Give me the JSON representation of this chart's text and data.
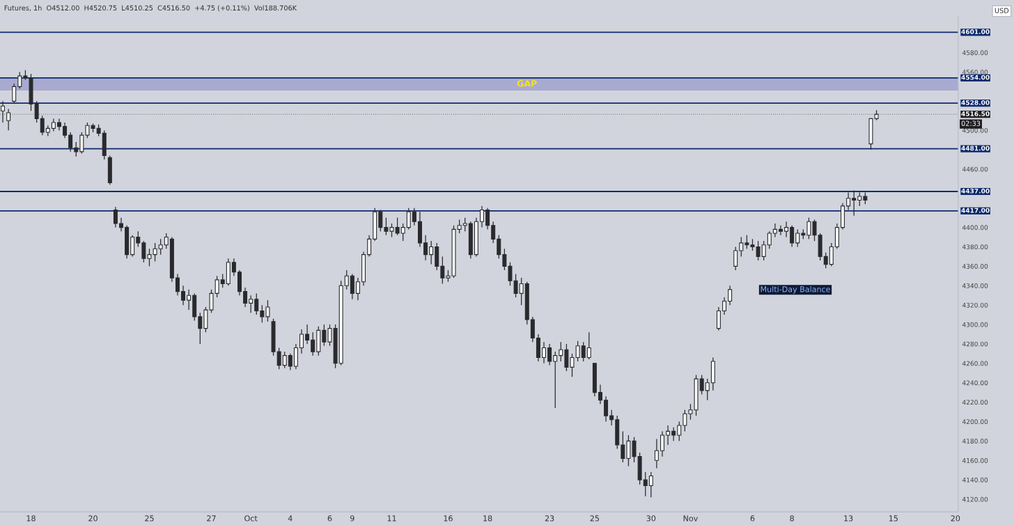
{
  "chart_data": {
    "type": "candlestick",
    "title": "Futures, 1h  O4512.00  H4520.75  L4510.25  C4516.50  +4.75 (+0.11%)  Vol188.706K",
    "categories": [
      null,
      null,
      null,
      null,
      null,
      "18",
      null,
      null,
      null,
      null,
      null,
      null,
      null,
      null,
      null,
      null,
      "20",
      null,
      null,
      null,
      null,
      null,
      null,
      null,
      null,
      null,
      "25",
      null,
      null,
      null,
      null,
      null,
      null,
      null,
      null,
      null,
      null,
      "27",
      null,
      null,
      null,
      null,
      null,
      null,
      "Oct",
      null,
      null,
      null,
      null,
      null,
      null,
      "4",
      null,
      null,
      null,
      null,
      null,
      null,
      "6",
      null,
      null,
      null,
      "9",
      null,
      null,
      null,
      null,
      null,
      null,
      "11",
      null,
      null,
      null,
      null,
      null,
      null,
      null,
      null,
      null,
      "16",
      null,
      null,
      null,
      null,
      null,
      null,
      "18",
      null,
      null,
      null,
      null,
      null,
      null,
      null,
      null,
      null,
      null,
      "23",
      null,
      null,
      null,
      null,
      null,
      null,
      null,
      "25",
      null,
      null,
      null,
      null,
      null,
      null,
      null,
      null,
      null,
      "30",
      null,
      null,
      null,
      null,
      null,
      null,
      "Nov",
      null,
      null,
      null,
      null,
      null,
      null,
      null,
      null,
      null,
      null,
      "6",
      null,
      null,
      null,
      null,
      null,
      null,
      "8",
      null,
      null,
      null,
      null,
      null,
      null,
      null,
      null,
      null,
      "13",
      null,
      null,
      null,
      null,
      null,
      null,
      null,
      "15",
      null,
      null,
      null,
      null,
      null,
      null,
      null,
      null,
      null,
      null,
      "20"
    ],
    "ohlc": [
      [
        4520,
        4530,
        4508,
        4525
      ],
      [
        4510,
        4522,
        4500,
        4518
      ],
      [
        4530,
        4548,
        4528,
        4545
      ],
      [
        4545,
        4560,
        4543,
        4556
      ],
      [
        4556,
        4562,
        4552,
        4554
      ],
      [
        4554,
        4558,
        4520,
        4527
      ],
      [
        4527,
        4530,
        4508,
        4512
      ],
      [
        4512,
        4515,
        4495,
        4498
      ],
      [
        4498,
        4505,
        4494,
        4502
      ],
      [
        4502,
        4512,
        4499,
        4508
      ],
      [
        4508,
        4512,
        4500,
        4504
      ],
      [
        4504,
        4508,
        4492,
        4495
      ],
      [
        4495,
        4498,
        4478,
        4482
      ],
      [
        4482,
        4488,
        4473,
        4478
      ],
      [
        4478,
        4498,
        4476,
        4495
      ],
      [
        4495,
        4508,
        4492,
        4505
      ],
      [
        4505,
        4507,
        4498,
        4502
      ],
      [
        4502,
        4506,
        4494,
        4497
      ],
      [
        4497,
        4500,
        4470,
        4474
      ],
      [
        4472,
        4474,
        4444,
        4446
      ],
      [
        4418,
        4421,
        4400,
        4404
      ],
      [
        4404,
        4410,
        4396,
        4400
      ],
      [
        4400,
        4402,
        4368,
        4372
      ],
      [
        4372,
        4392,
        4370,
        4390
      ],
      [
        4390,
        4396,
        4380,
        4384
      ],
      [
        4384,
        4386,
        4364,
        4368
      ],
      [
        4368,
        4378,
        4360,
        4372
      ],
      [
        4372,
        4384,
        4365,
        4378
      ],
      [
        4378,
        4388,
        4372,
        4382
      ],
      [
        4382,
        4394,
        4378,
        4390
      ],
      [
        4388,
        4390,
        4344,
        4348
      ],
      [
        4348,
        4352,
        4330,
        4334
      ],
      [
        4334,
        4340,
        4320,
        4325
      ],
      [
        4325,
        4336,
        4315,
        4330
      ],
      [
        4330,
        4332,
        4304,
        4308
      ],
      [
        4308,
        4312,
        4280,
        4296
      ],
      [
        4296,
        4318,
        4292,
        4315
      ],
      [
        4315,
        4336,
        4312,
        4332
      ],
      [
        4332,
        4350,
        4328,
        4346
      ],
      [
        4346,
        4352,
        4338,
        4342
      ],
      [
        4342,
        4368,
        4340,
        4364
      ],
      [
        4364,
        4368,
        4350,
        4354
      ],
      [
        4354,
        4356,
        4330,
        4334
      ],
      [
        4334,
        4338,
        4318,
        4322
      ],
      [
        4322,
        4330,
        4312,
        4326
      ],
      [
        4326,
        4332,
        4310,
        4314
      ],
      [
        4314,
        4320,
        4302,
        4308
      ],
      [
        4308,
        4325,
        4303,
        4318
      ],
      [
        4303,
        4306,
        4268,
        4272
      ],
      [
        4272,
        4276,
        4254,
        4258
      ],
      [
        4258,
        4272,
        4255,
        4268
      ],
      [
        4268,
        4270,
        4253,
        4257
      ],
      [
        4257,
        4280,
        4254,
        4276
      ],
      [
        4276,
        4295,
        4270,
        4290
      ],
      [
        4290,
        4300,
        4280,
        4284
      ],
      [
        4284,
        4292,
        4268,
        4272
      ],
      [
        4272,
        4298,
        4268,
        4294
      ],
      [
        4294,
        4300,
        4278,
        4282
      ],
      [
        4282,
        4300,
        4278,
        4296
      ],
      [
        4296,
        4300,
        4255,
        4260
      ],
      [
        4260,
        4345,
        4258,
        4340
      ],
      [
        4340,
        4356,
        4336,
        4350
      ],
      [
        4350,
        4352,
        4326,
        4332
      ],
      [
        4332,
        4348,
        4325,
        4344
      ],
      [
        4344,
        4375,
        4340,
        4372
      ],
      [
        4372,
        4392,
        4370,
        4388
      ],
      [
        4388,
        4420,
        4386,
        4416
      ],
      [
        4416,
        4418,
        4396,
        4400
      ],
      [
        4400,
        4410,
        4392,
        4396
      ],
      [
        4396,
        4404,
        4390,
        4400
      ],
      [
        4400,
        4410,
        4392,
        4394
      ],
      [
        4394,
        4404,
        4386,
        4400
      ],
      [
        4400,
        4420,
        4398,
        4416
      ],
      [
        4416,
        4420,
        4402,
        4406
      ],
      [
        4406,
        4416,
        4380,
        4384
      ],
      [
        4384,
        4392,
        4366,
        4372
      ],
      [
        4372,
        4386,
        4362,
        4380
      ],
      [
        4380,
        4384,
        4356,
        4360
      ],
      [
        4360,
        4370,
        4342,
        4348
      ],
      [
        4348,
        4356,
        4344,
        4350
      ],
      [
        4350,
        4402,
        4348,
        4398
      ],
      [
        4398,
        4408,
        4394,
        4402
      ],
      [
        4402,
        4410,
        4396,
        4404
      ],
      [
        4404,
        4406,
        4368,
        4372
      ],
      [
        4372,
        4410,
        4370,
        4406
      ],
      [
        4406,
        4422,
        4400,
        4418
      ],
      [
        4418,
        4420,
        4398,
        4402
      ],
      [
        4402,
        4406,
        4384,
        4388
      ],
      [
        4388,
        4392,
        4368,
        4372
      ],
      [
        4372,
        4378,
        4356,
        4360
      ],
      [
        4360,
        4364,
        4340,
        4345
      ],
      [
        4345,
        4352,
        4328,
        4332
      ],
      [
        4332,
        4348,
        4320,
        4342
      ],
      [
        4342,
        4344,
        4300,
        4305
      ],
      [
        4305,
        4308,
        4282,
        4286
      ],
      [
        4286,
        4290,
        4262,
        4266
      ],
      [
        4266,
        4282,
        4260,
        4276
      ],
      [
        4276,
        4280,
        4258,
        4262
      ],
      [
        4262,
        4272,
        4214,
        4268
      ],
      [
        4268,
        4282,
        4262,
        4274
      ],
      [
        4274,
        4280,
        4252,
        4256
      ],
      [
        4256,
        4270,
        4246,
        4266
      ],
      [
        4266,
        4283,
        4262,
        4278
      ],
      [
        4278,
        4282,
        4262,
        4266
      ],
      [
        4266,
        4292,
        4264,
        4276
      ],
      [
        4260,
        4260,
        4226,
        4230
      ],
      [
        4230,
        4238,
        4218,
        4222
      ],
      [
        4222,
        4226,
        4200,
        4206
      ],
      [
        4206,
        4212,
        4196,
        4202
      ],
      [
        4202,
        4206,
        4172,
        4176
      ],
      [
        4176,
        4190,
        4158,
        4162
      ],
      [
        4162,
        4186,
        4154,
        4180
      ],
      [
        4180,
        4184,
        4158,
        4164
      ],
      [
        4164,
        4168,
        4135,
        4140
      ],
      [
        4140,
        4148,
        4123,
        4134
      ],
      [
        4134,
        4148,
        4122,
        4144
      ],
      [
        4160,
        4182,
        4152,
        4170
      ],
      [
        4170,
        4190,
        4164,
        4186
      ],
      [
        4186,
        4196,
        4176,
        4190
      ],
      [
        4190,
        4194,
        4180,
        4186
      ],
      [
        4186,
        4200,
        4180,
        4196
      ],
      [
        4196,
        4212,
        4190,
        4208
      ],
      [
        4208,
        4218,
        4202,
        4212
      ],
      [
        4212,
        4248,
        4206,
        4244
      ],
      [
        4244,
        4248,
        4228,
        4232
      ],
      [
        4232,
        4244,
        4222,
        4240
      ],
      [
        4240,
        4266,
        4232,
        4262
      ],
      [
        4296,
        4318,
        4294,
        4314
      ],
      [
        4314,
        4328,
        4310,
        4324
      ],
      [
        4324,
        4340,
        4320,
        4336
      ],
      [
        4360,
        4380,
        4356,
        4376
      ],
      [
        4376,
        4390,
        4370,
        4384
      ],
      [
        4384,
        4392,
        4378,
        4382
      ],
      [
        4382,
        4388,
        4376,
        4380
      ],
      [
        4380,
        4386,
        4366,
        4370
      ],
      [
        4370,
        4386,
        4366,
        4382
      ],
      [
        4382,
        4396,
        4378,
        4394
      ],
      [
        4394,
        4404,
        4390,
        4398
      ],
      [
        4398,
        4402,
        4392,
        4396
      ],
      [
        4396,
        4406,
        4390,
        4400
      ],
      [
        4400,
        4402,
        4380,
        4384
      ],
      [
        4384,
        4398,
        4380,
        4394
      ],
      [
        4394,
        4398,
        4388,
        4392
      ],
      [
        4392,
        4410,
        4388,
        4406
      ],
      [
        4406,
        4408,
        4386,
        4392
      ],
      [
        4392,
        4394,
        4366,
        4370
      ],
      [
        4370,
        4374,
        4358,
        4362
      ],
      [
        4362,
        4384,
        4360,
        4380
      ],
      [
        4380,
        4404,
        4378,
        4400
      ],
      [
        4400,
        4425,
        4398,
        4422
      ],
      [
        4422,
        4436,
        4418,
        4430
      ],
      [
        4430,
        4438,
        4412,
        4428
      ],
      [
        4428,
        4436,
        4422,
        4432
      ],
      [
        4432,
        4436,
        4424,
        4428
      ],
      [
        4486,
        4512,
        4480,
        4512
      ],
      [
        4512,
        4520.75,
        4510.25,
        4516.5
      ],
      null,
      null,
      null,
      null,
      null,
      null,
      null,
      null,
      null,
      null,
      null,
      null,
      null,
      null
    ],
    "ylim": [
      4107,
      4618
    ],
    "yticks": [
      {
        "value": 4120,
        "label": "4120.00"
      },
      {
        "value": 4140,
        "label": "4140.00"
      },
      {
        "value": 4160,
        "label": "4160.00"
      },
      {
        "value": 4180,
        "label": "4180.00"
      },
      {
        "value": 4200,
        "label": "4200.00"
      },
      {
        "value": 4220,
        "label": "4220.00"
      },
      {
        "value": 4240,
        "label": "4240.00"
      },
      {
        "value": 4260,
        "label": "4260.00"
      },
      {
        "value": 4280,
        "label": "4280.00"
      },
      {
        "value": 4300,
        "label": "4300.00"
      },
      {
        "value": 4320,
        "label": "4320.00"
      },
      {
        "value": 4340,
        "label": "4340.00"
      },
      {
        "value": 4360,
        "label": "4360.00"
      },
      {
        "value": 4380,
        "label": "4380.00"
      },
      {
        "value": 4400,
        "label": "4400.00"
      },
      {
        "value": 4460,
        "label": "4460.00"
      },
      {
        "value": 4500,
        "label": "4500.00"
      },
      {
        "value": 4560,
        "label": "4560.00"
      },
      {
        "value": 4580,
        "label": "4580.00"
      }
    ],
    "ref_lines": [
      {
        "axis": "y",
        "value": 4601,
        "label": "4601.00",
        "color": "#0d2a6e"
      },
      {
        "axis": "y",
        "value": 4554,
        "label": "4554.00",
        "color": "#0d2a6e"
      },
      {
        "axis": "y",
        "value": 4528,
        "label": "4528.00",
        "color": "#0d2a6e"
      },
      {
        "axis": "y",
        "value": 4481,
        "label": "4481.00",
        "color": "#0d2a6e"
      },
      {
        "axis": "y",
        "value": 4437,
        "label": "4437.00",
        "color": "#0d2a6e"
      },
      {
        "axis": "y",
        "value": 4417,
        "label": "4417.00",
        "color": "#0d2a6e"
      },
      {
        "axis": "y",
        "value": 4516.5,
        "label": "4516.50",
        "color": "#888888",
        "line_style": "dotted"
      }
    ],
    "bands": [
      {
        "axis": "y",
        "from": 4541,
        "to": 4554,
        "label": "GAP",
        "color": "#a9aad0"
      }
    ],
    "annotations": [
      "USD",
      "02:33",
      "Multi-Day Balance"
    ],
    "grid": false
  }
}
